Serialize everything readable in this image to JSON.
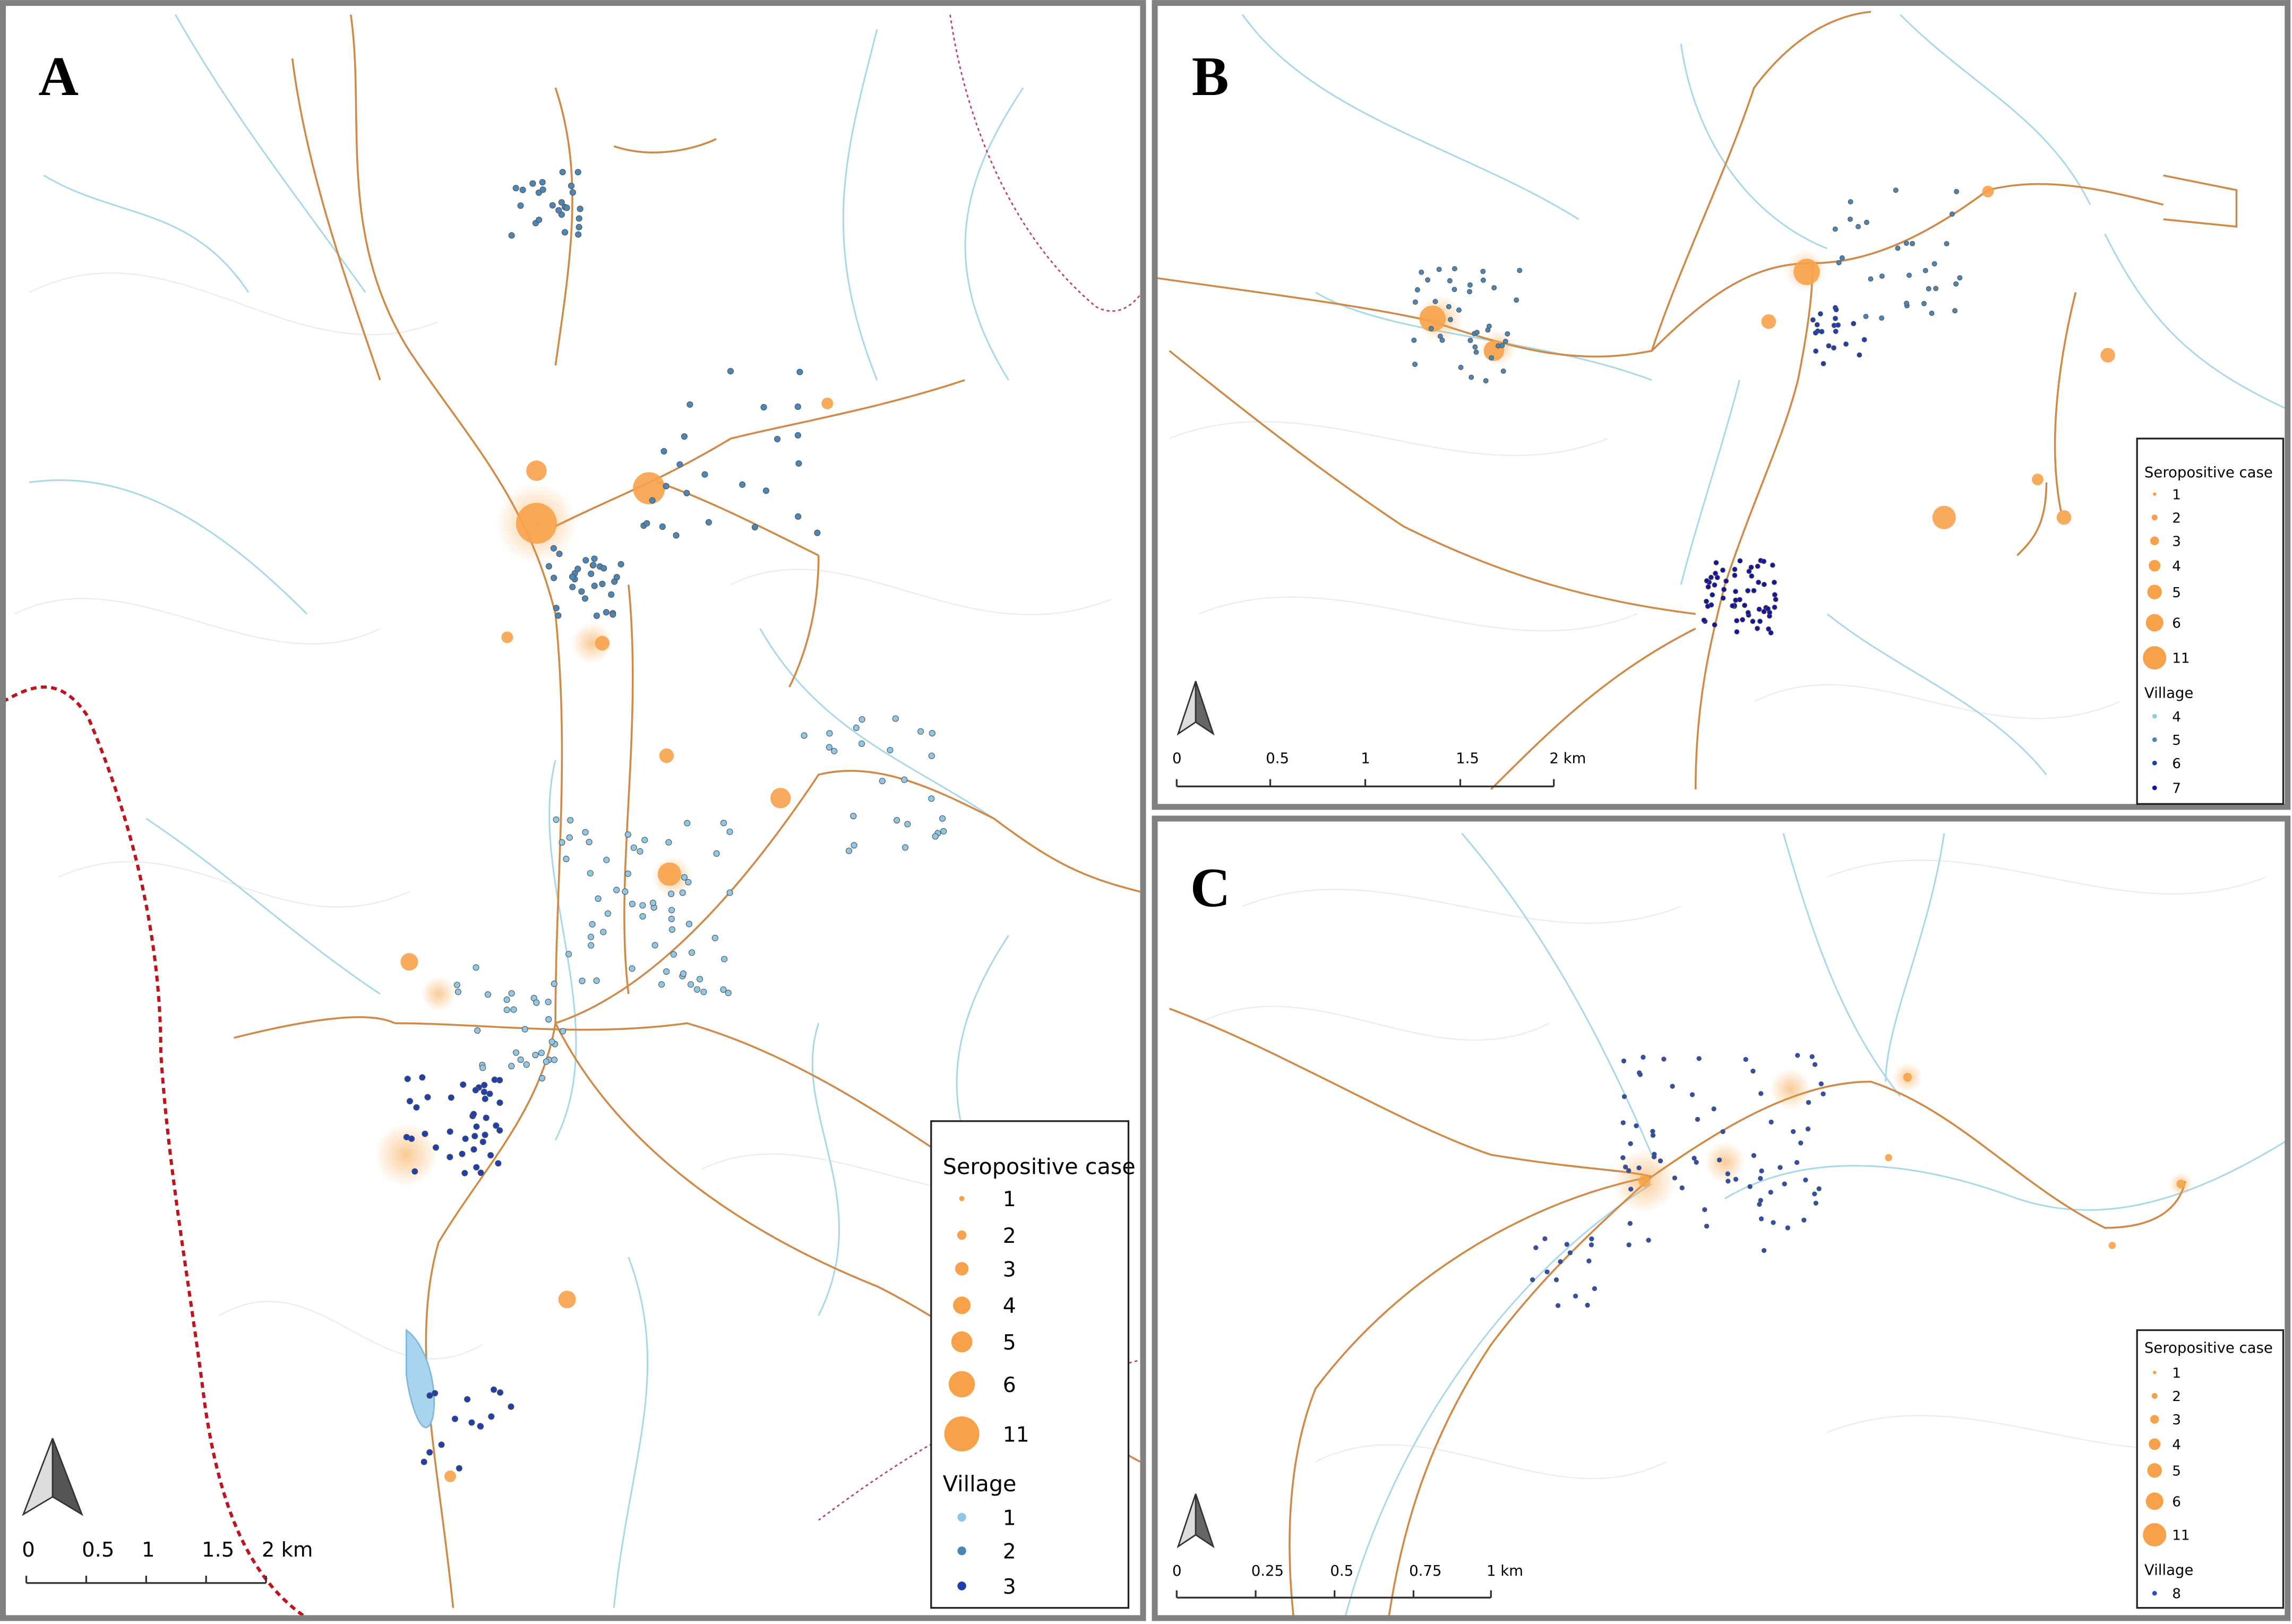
{
  "panels": [
    {
      "label": "A",
      "legend": {
        "case_title": "Seropositive case",
        "cases": [
          "1",
          "2",
          "3",
          "4",
          "5",
          "6",
          "11"
        ],
        "village_title": "Village",
        "villages": [
          {
            "label": "1",
            "color": "#8ec8e8"
          },
          {
            "label": "2",
            "color": "#4a86b8"
          },
          {
            "label": "3",
            "color": "#1f3fb0"
          }
        ]
      },
      "scale": [
        "0",
        "0.5",
        "1",
        "1.5",
        "2 km"
      ]
    },
    {
      "label": "B",
      "legend": {
        "case_title": "Seropositive case",
        "cases": [
          "1",
          "2",
          "3",
          "4",
          "5",
          "6",
          "11"
        ],
        "village_title": "Village",
        "villages": [
          {
            "label": "4",
            "color": "#8ec8e8"
          },
          {
            "label": "5",
            "color": "#4a86b8"
          },
          {
            "label": "6",
            "color": "#1f3fb0"
          },
          {
            "label": "7",
            "color": "#1414a0"
          }
        ]
      },
      "scale": [
        "0",
        "0.5",
        "1",
        "1.5",
        "2 km"
      ]
    },
    {
      "label": "C",
      "legend": {
        "case_title": "Seropositive case",
        "cases": [
          "1",
          "2",
          "3",
          "4",
          "5",
          "6",
          "11"
        ],
        "village_title": "Village",
        "villages": [
          {
            "label": "8",
            "color": "#2a4fb8"
          }
        ]
      },
      "scale": [
        "0",
        "0.25",
        "0.5",
        "0.75",
        "1 km"
      ]
    }
  ]
}
